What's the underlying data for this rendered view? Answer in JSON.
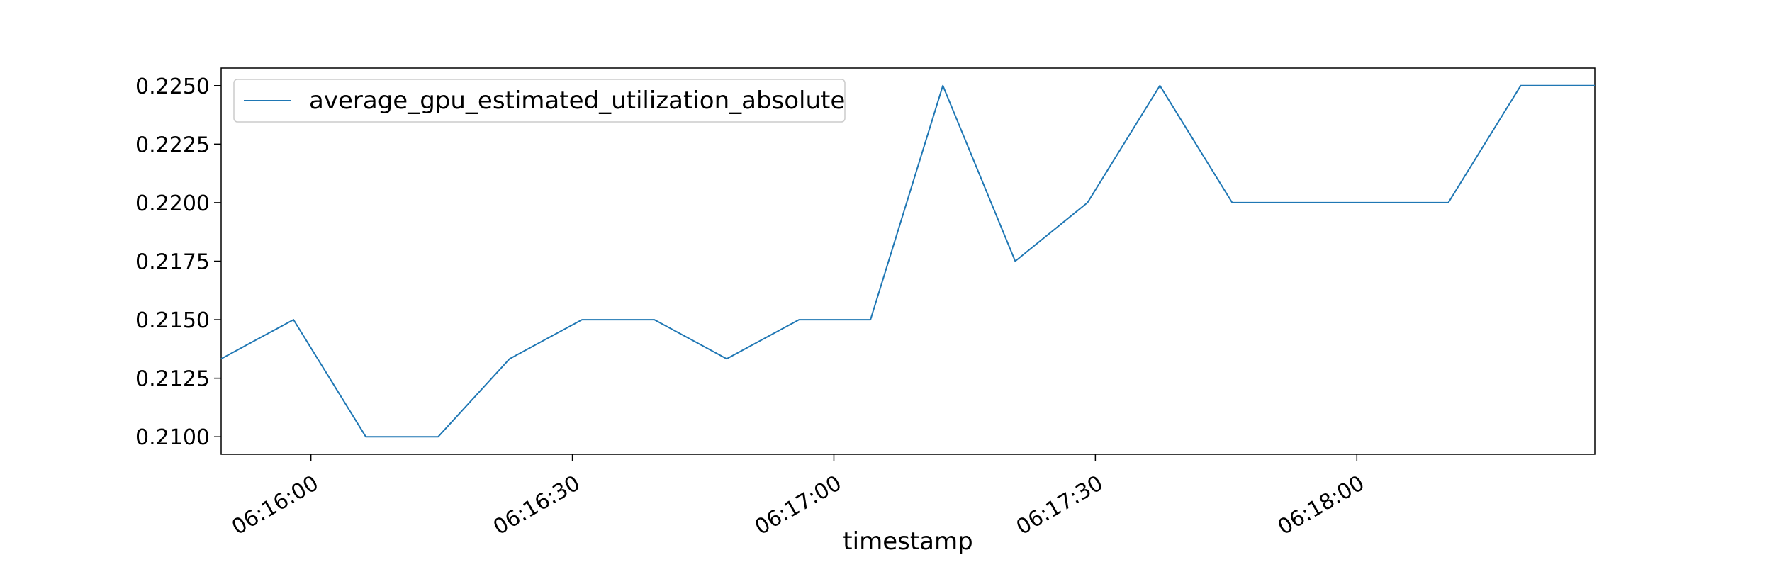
{
  "chart_data": {
    "type": "line",
    "title": "",
    "xlabel": "timestamp",
    "ylabel": "",
    "x_tick_labels": [
      "06:16:00",
      "06:16:30",
      "06:17:00",
      "06:17:30",
      "06:18:00"
    ],
    "x_tick_seconds": [
      0,
      30,
      60,
      90,
      120
    ],
    "y_tick_labels": [
      "0.2100",
      "0.2125",
      "0.2150",
      "0.2175",
      "0.2200",
      "0.2225",
      "0.2250"
    ],
    "y_ticks": [
      0.21,
      0.2125,
      0.215,
      0.2175,
      0.22,
      0.2225,
      0.225
    ],
    "xlim_seconds": [
      -10.3,
      147.3
    ],
    "ylim": [
      0.20925,
      0.22575
    ],
    "legend_position": "upper-left",
    "grid": false,
    "series": [
      {
        "name": "average_gpu_estimated_utilization_absolute",
        "color": "#1f77b4",
        "x_seconds": [
          -10.3,
          -2,
          6.3,
          14.6,
          22.8,
          31.1,
          39.4,
          47.7,
          56,
          64.2,
          72.5,
          80.8,
          89.1,
          97.4,
          105.7,
          113.9,
          122.2,
          130.5,
          138.8,
          147.3
        ],
        "values": [
          0.21333,
          0.215,
          0.21,
          0.21,
          0.21333,
          0.215,
          0.215,
          0.21333,
          0.215,
          0.215,
          0.225,
          0.2175,
          0.22,
          0.225,
          0.22,
          0.22,
          0.22,
          0.22,
          0.225,
          0.225
        ]
      }
    ]
  }
}
